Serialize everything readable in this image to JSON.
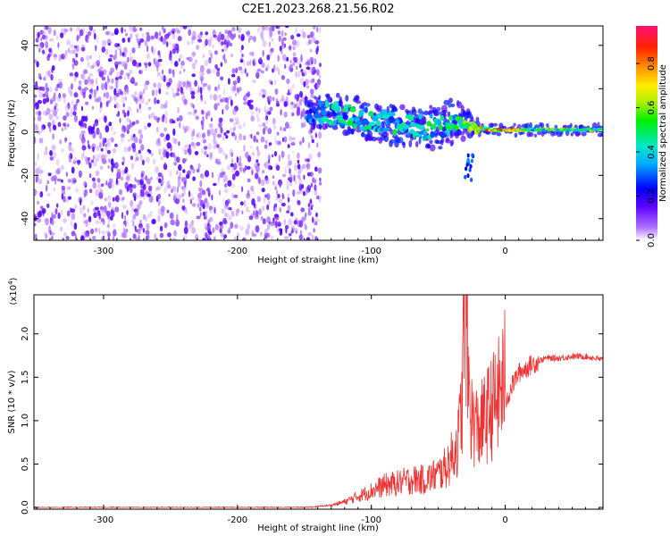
{
  "title": "C2E1.2023.268.21.56.R02",
  "colors": {
    "snr_line": "#ee3333",
    "noise_dots": "#8a2be2"
  },
  "chart_data": [
    {
      "type": "heatmap",
      "title": "C2E1.2023.268.21.56.R02",
      "xlabel": "Height of straight line (km)",
      "ylabel": "Frequency (Hz)",
      "xlim": [
        -352,
        73
      ],
      "ylim": [
        -50,
        49
      ],
      "x_ticks": [
        -300,
        -200,
        -100,
        0
      ],
      "x_tick_labels": [
        "-300",
        "-200",
        "-100",
        "0"
      ],
      "y_ticks": [
        -40,
        -20,
        0,
        20,
        40
      ],
      "y_tick_labels": [
        "-40",
        "-20",
        "0",
        "20",
        "40"
      ],
      "colorbar": {
        "label": "Normalized spectral amplitude",
        "range": [
          0.0,
          0.97
        ],
        "ticks": [
          0.0,
          0.2,
          0.4,
          0.6,
          0.8
        ],
        "tick_labels": [
          "0.0",
          "0.2",
          "0.4",
          "0.6",
          "0.8"
        ],
        "colormap": "rainbow"
      },
      "noise_region": {
        "x_range": [
          -352,
          -138
        ],
        "freq_range": [
          -50,
          49
        ]
      },
      "ridge": [
        {
          "height": -148,
          "freq": 8,
          "width": 6,
          "amp": 0.35
        },
        {
          "height": -140,
          "freq": 9,
          "width": 9,
          "amp": 0.4
        },
        {
          "height": -130,
          "freq": 9,
          "width": 10,
          "amp": 0.45
        },
        {
          "height": -120,
          "freq": 8,
          "width": 10,
          "amp": 0.5
        },
        {
          "height": -110,
          "freq": 7,
          "width": 10,
          "amp": 0.5
        },
        {
          "height": -100,
          "freq": 5,
          "width": 10,
          "amp": 0.5
        },
        {
          "height": -90,
          "freq": 4,
          "width": 10,
          "amp": 0.45
        },
        {
          "height": -80,
          "freq": 3,
          "width": 10,
          "amp": 0.45
        },
        {
          "height": -70,
          "freq": 3,
          "width": 10,
          "amp": 0.45
        },
        {
          "height": -60,
          "freq": 2,
          "width": 10,
          "amp": 0.5
        },
        {
          "height": -50,
          "freq": 3,
          "width": 12,
          "amp": 0.5
        },
        {
          "height": -40,
          "freq": 5,
          "width": 12,
          "amp": 0.45
        },
        {
          "height": -30,
          "freq": 4,
          "width": 8,
          "amp": 0.55
        },
        {
          "height": -20,
          "freq": 2,
          "width": 4,
          "amp": 0.7
        },
        {
          "height": -10,
          "freq": 1,
          "width": 3,
          "amp": 0.8
        },
        {
          "height": 0,
          "freq": 1,
          "width": 3,
          "amp": 0.85
        },
        {
          "height": 10,
          "freq": 1,
          "width": 3,
          "amp": 0.75
        },
        {
          "height": 20,
          "freq": 1,
          "width": 3,
          "amp": 0.55
        },
        {
          "height": 40,
          "freq": 1,
          "width": 3,
          "amp": 0.55
        },
        {
          "height": 60,
          "freq": 1,
          "width": 3,
          "amp": 0.55
        },
        {
          "height": 73,
          "freq": 1,
          "width": 3,
          "amp": 0.55
        }
      ]
    },
    {
      "type": "line",
      "xlabel": "Height of straight line (km)",
      "ylabel": "SNR (10 * v/v)",
      "y_scale_label": "(x10^4)",
      "xlim": [
        -352,
        73
      ],
      "ylim": [
        -0.02,
        2.45
      ],
      "x_ticks": [
        -300,
        -200,
        -100,
        0
      ],
      "x_tick_labels": [
        "-300",
        "-200",
        "-100",
        "0"
      ],
      "y_ticks": [
        0.0,
        0.5,
        1.0,
        1.5,
        2.0
      ],
      "y_tick_labels": [
        "0.0",
        "0.5",
        "1.0",
        "1.5",
        "2.0"
      ],
      "series": [
        {
          "x": [
            -352,
            -300,
            -250,
            -200,
            -150,
            -130,
            -120,
            -110,
            -100,
            -90,
            -80,
            -70,
            -60,
            -50,
            -45,
            -40,
            -35,
            -32,
            -30,
            -28,
            -25,
            -20,
            -15,
            -10,
            -5,
            0,
            5,
            10,
            15,
            20,
            30,
            40,
            50,
            60,
            73
          ],
          "values": [
            0.0,
            0.0,
            0.0,
            0.0,
            0.0,
            0.02,
            0.05,
            0.1,
            0.15,
            0.2,
            0.22,
            0.25,
            0.25,
            0.3,
            0.35,
            0.45,
            0.6,
            1.0,
            2.4,
            1.2,
            0.8,
            0.7,
            0.8,
            0.9,
            1.0,
            1.2,
            1.4,
            1.55,
            1.6,
            1.65,
            1.72,
            1.72,
            1.74,
            1.74,
            1.7
          ]
        }
      ]
    }
  ]
}
